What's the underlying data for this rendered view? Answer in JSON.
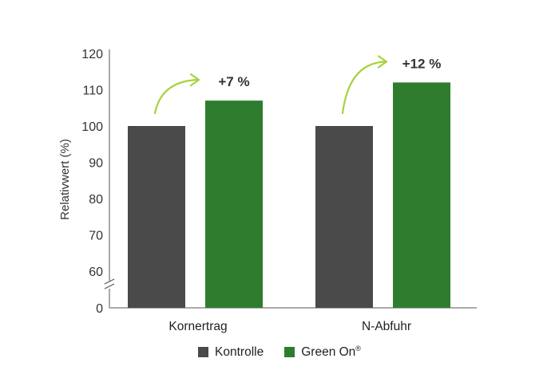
{
  "chart_data": {
    "type": "bar",
    "ylabel": "Relativwert (%)",
    "xlabel": "",
    "ylim": [
      0,
      120
    ],
    "y_axis_break": true,
    "yticks": [
      "0",
      "60",
      "70",
      "80",
      "90",
      "100",
      "110",
      "120"
    ],
    "categories": [
      "Kornertrag",
      "N-Abfuhr"
    ],
    "series": [
      {
        "name": "Kontrolle",
        "values": [
          100,
          100
        ]
      },
      {
        "name": "Green On",
        "values": [
          107,
          112
        ]
      }
    ],
    "annotations": [
      "+7 %",
      "+12 %"
    ],
    "legend_position": "bottom",
    "grid": false
  },
  "legend": {
    "items": [
      {
        "label": "Kontrolle",
        "suffix": ""
      },
      {
        "label": "Green On",
        "suffix": "®"
      }
    ]
  },
  "colors": {
    "kontrolle": "#4a4a4a",
    "green_on": "#2e7d2e",
    "arrow": "#a8d23a",
    "axis": "#555555"
  }
}
